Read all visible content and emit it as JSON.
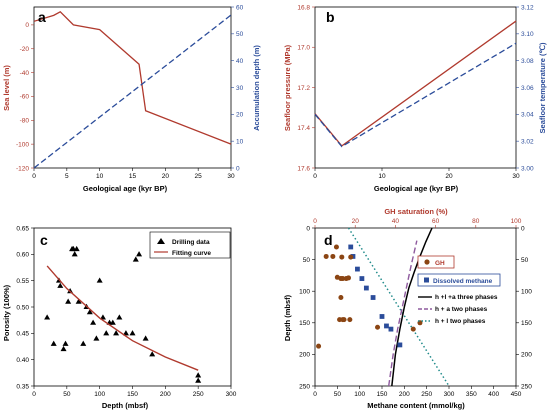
{
  "figure": {
    "panels": [
      {
        "id": "a",
        "letter": "a",
        "xlabel": "Geological age (kyr BP)",
        "ylabel_left": "Sea level (m)",
        "ylabel_right": "Accumulation depth (m)",
        "colors": {
          "left": "#b03a2e",
          "right": "#2b4c9a"
        }
      },
      {
        "id": "b",
        "letter": "b",
        "xlabel": "Geological age (kyr BP)",
        "ylabel_left": "Seafloor pressure (MPa)",
        "ylabel_right": "Seafloor temperature (℃)",
        "colors": {
          "left": "#b03a2e",
          "right": "#2b4c9a"
        }
      },
      {
        "id": "c",
        "letter": "c",
        "xlabel": "Depth (mbsf)",
        "ylabel_left": "Porosity (100%)",
        "legend": [
          "Drilling data",
          "Fitting curve"
        ],
        "colors": {
          "points": "#000000",
          "curve": "#b03a2e"
        }
      },
      {
        "id": "d",
        "letter": "d",
        "xlabel": "Methane content (mmol/kg)",
        "xlabel_top": "GH saturation (%)",
        "ylabel_left": "Depth (mbsf)",
        "legend": [
          "GH",
          "Dissolved methane",
          "h +l +a three phases",
          "h + a two phases",
          "h + l two phases"
        ],
        "colors": {
          "gh": "#b03a2e",
          "dissolved": "#2b4c9a",
          "three": "#000000",
          "ha": "#8e5a9e",
          "hl": "#1f8a8a",
          "top_axis": "#b03a2e"
        }
      }
    ]
  },
  "chart_data": [
    {
      "type": "line",
      "panel": "a",
      "xlim": [
        0,
        30
      ],
      "ylim_left": [
        -120,
        15
      ],
      "ylim_right": [
        0,
        60
      ],
      "xticks": [
        0,
        5,
        10,
        15,
        20,
        25,
        30
      ],
      "yticks_left": [
        -120,
        -100,
        -80,
        -60,
        -40,
        -20,
        0
      ],
      "yticks_right": [
        0,
        10,
        20,
        30,
        40,
        50,
        60
      ],
      "series": [
        {
          "axis": "left",
          "style": "solid",
          "x": [
            0,
            3,
            4,
            6,
            10,
            16,
            17,
            30
          ],
          "y": [
            3,
            8,
            11,
            0,
            -4,
            -33,
            -72,
            -100
          ]
        },
        {
          "axis": "right",
          "style": "dashed",
          "x": [
            0,
            30
          ],
          "y": [
            0,
            57
          ]
        }
      ]
    },
    {
      "type": "line",
      "panel": "b",
      "xlim": [
        0,
        30
      ],
      "ylim_left": [
        17.6,
        16.8
      ],
      "ylim_right": [
        3.0,
        3.12
      ],
      "xticks": [
        0,
        10,
        20,
        30
      ],
      "yticks_left": [
        16.8,
        17.0,
        17.2,
        17.4,
        17.6
      ],
      "yticks_right": [
        3.0,
        3.02,
        3.04,
        3.06,
        3.08,
        3.1,
        3.12
      ],
      "series": [
        {
          "axis": "left",
          "style": "solid",
          "x": [
            0,
            4,
            30
          ],
          "y": [
            17.33,
            17.49,
            16.87
          ]
        },
        {
          "axis": "right",
          "style": "dashed",
          "x": [
            0,
            4,
            30
          ],
          "y": [
            3.04,
            3.016,
            3.093
          ]
        }
      ]
    },
    {
      "type": "scatter",
      "panel": "c",
      "xlim": [
        0,
        300
      ],
      "ylim": [
        0.35,
        0.65
      ],
      "xticks": [
        0,
        50,
        100,
        150,
        200,
        250,
        300
      ],
      "yticks": [
        0.35,
        0.4,
        0.45,
        0.5,
        0.55,
        0.6,
        0.65
      ],
      "series": [
        {
          "name": "Drilling data",
          "x": [
            20,
            30,
            38,
            40,
            45,
            48,
            52,
            55,
            58,
            60,
            62,
            65,
            68,
            75,
            80,
            85,
            90,
            95,
            100,
            105,
            110,
            115,
            120,
            125,
            130,
            140,
            150,
            155,
            160,
            170,
            180,
            250,
            250
          ],
          "y": [
            0.48,
            0.43,
            0.55,
            0.54,
            0.42,
            0.43,
            0.51,
            0.53,
            0.61,
            0.61,
            0.6,
            0.61,
            0.51,
            0.43,
            0.5,
            0.49,
            0.47,
            0.44,
            0.55,
            0.48,
            0.45,
            0.47,
            0.47,
            0.45,
            0.48,
            0.45,
            0.45,
            0.59,
            0.6,
            0.44,
            0.41,
            0.37,
            0.36
          ]
        },
        {
          "name": "Fitting curve",
          "x": [
            20,
            50,
            100,
            150,
            200,
            250
          ],
          "y": [
            0.578,
            0.535,
            0.479,
            0.436,
            0.405,
            0.38
          ]
        }
      ]
    },
    {
      "type": "scatter",
      "panel": "d",
      "xlim": [
        0,
        450
      ],
      "ylim": [
        250,
        0
      ],
      "xlim_top": [
        0,
        100
      ],
      "xticks": [
        0,
        50,
        100,
        150,
        200,
        250,
        300,
        350,
        400,
        450
      ],
      "xticks_top": [
        0,
        20,
        40,
        60,
        80,
        100
      ],
      "yticks": [
        0,
        50,
        100,
        150,
        200,
        250
      ],
      "series": [
        {
          "name": "GH",
          "x": [
            8,
            25,
            40,
            48,
            50,
            55,
            58,
            60,
            62,
            65,
            70,
            75,
            78,
            80,
            58,
            140,
            62,
            220,
            235
          ],
          "y": [
            187,
            45,
            45,
            30,
            78,
            145,
            80,
            46,
            80,
            145,
            80,
            79,
            145,
            46,
            110,
            157,
            145,
            160,
            150
          ]
        },
        {
          "name": "Dissolved methane",
          "x": [
            80,
            85,
            95,
            105,
            115,
            130,
            150,
            160,
            170,
            190
          ],
          "y": [
            30,
            45,
            65,
            80,
            95,
            110,
            140,
            155,
            160,
            185
          ]
        },
        {
          "name": "h +l +a three phases",
          "x": [
            172,
            180,
            190,
            200,
            210,
            222,
            235,
            248,
            262
          ],
          "y": [
            250,
            200,
            160,
            125,
            95,
            70,
            45,
            22,
            0
          ]
        },
        {
          "name": "h + a two phases",
          "x": [
            165,
            175,
            185,
            200,
            215,
            228
          ],
          "y": [
            250,
            200,
            160,
            110,
            60,
            20
          ]
        },
        {
          "name": "h + l two phases",
          "x": [
            75,
            120,
            165,
            210,
            255,
            300
          ],
          "y": [
            0,
            50,
            100,
            150,
            200,
            250
          ]
        }
      ]
    }
  ]
}
